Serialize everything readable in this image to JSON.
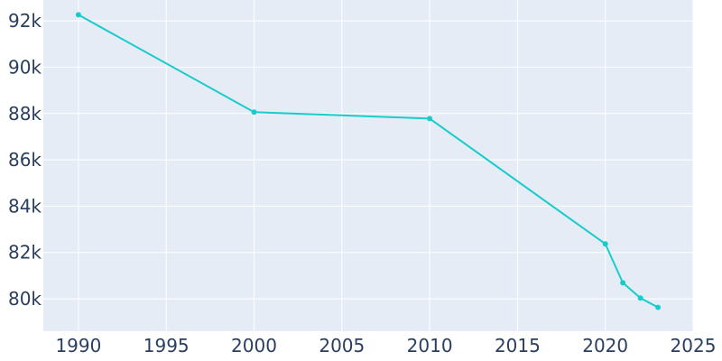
{
  "chart_data": {
    "type": "line",
    "title": "",
    "xlabel": "",
    "ylabel": "",
    "xlim": [
      1988,
      2025
    ],
    "ylim": [
      78600,
      92900
    ],
    "x_ticks": [
      1990,
      1995,
      2000,
      2005,
      2010,
      2015,
      2020,
      2025
    ],
    "x_tick_labels": [
      "1990",
      "1995",
      "2000",
      "2005",
      "2010",
      "2015",
      "2020",
      "2025"
    ],
    "y_ticks": [
      80000,
      82000,
      84000,
      86000,
      88000,
      90000,
      92000
    ],
    "y_tick_labels": [
      "80k",
      "82k",
      "84k",
      "86k",
      "88k",
      "90k",
      "92k"
    ],
    "grid": true,
    "legend": false,
    "colors": {
      "line": "#19cccc",
      "plot_bg": "#e5ecf6",
      "grid": "#ffffff",
      "text": "#2a3f5f"
    },
    "series": [
      {
        "x": [
          1990,
          2000,
          2010,
          2020,
          2021,
          2022,
          2023
        ],
        "y": [
          92260,
          88060,
          87780,
          82370,
          80690,
          80030,
          79630
        ]
      }
    ]
  }
}
